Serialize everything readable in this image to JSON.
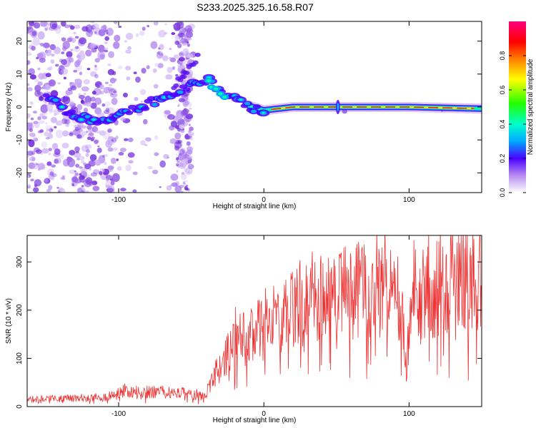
{
  "title": "S233.2025.325.16.58.R07",
  "chart_data": [
    {
      "type": "heatmap",
      "name": "spectrogram",
      "xlabel": "Height of straight line (km)",
      "ylabel": "Frequency (Hz)",
      "xlim": [
        -163,
        150
      ],
      "ylim": [
        -26,
        26
      ],
      "xticks": [
        -100,
        0,
        100
      ],
      "yticks": [
        -20,
        -10,
        0,
        10,
        20
      ],
      "colorbar": {
        "label": "Normalized spectral amplitude",
        "range": [
          0,
          1
        ],
        "ticks": [
          0.0,
          0.2,
          0.4,
          0.6,
          0.8
        ]
      },
      "ridge": {
        "x": [
          -150,
          -130,
          -110,
          -90,
          -70,
          -52,
          -38,
          -30,
          -15,
          0,
          20,
          50,
          100,
          150
        ],
        "freq": [
          3,
          -3,
          -5,
          -1,
          3,
          6,
          8,
          5,
          1,
          -1,
          0,
          0,
          0,
          -0.5
        ]
      }
    },
    {
      "type": "line",
      "name": "snr",
      "xlabel": "Height of straight line (km)",
      "ylabel": "SNR (10 * v/v)",
      "xlim": [
        -163,
        150
      ],
      "ylim": [
        0,
        355
      ],
      "xticks": [
        -100,
        0,
        100
      ],
      "yticks": [
        0,
        100,
        200,
        300
      ],
      "color": "#ee3333",
      "envelope_x": [
        -163,
        -110,
        -100,
        -60,
        -40,
        -35,
        -20,
        0,
        20,
        40,
        60,
        80,
        95,
        98,
        102,
        120,
        150
      ],
      "envelope_mean": [
        15,
        18,
        30,
        30,
        20,
        60,
        130,
        165,
        200,
        225,
        240,
        245,
        215,
        90,
        215,
        250,
        275
      ]
    }
  ]
}
